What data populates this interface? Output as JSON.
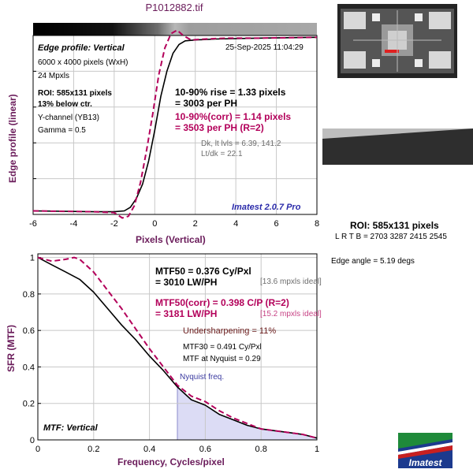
{
  "file_title": "P1012882.tif",
  "edge_panel": {
    "label": "Edge profile: Vertical",
    "date": "25-Sep-2025 11:04:29",
    "lines": [
      {
        "text": "6000 x 4000 pixels (WxH)",
        "style": "info"
      },
      {
        "text": "24 Mpxls",
        "style": "info"
      },
      {
        "text": "ROI: 585x131 pixels",
        "style": "info-b"
      },
      {
        "text": "13% below ctr.",
        "style": "info-b"
      },
      {
        "text": "Y-channel  (YB13)",
        "style": "info"
      },
      {
        "text": "Gamma = 0.5",
        "style": "info"
      }
    ],
    "rise_1": "10-90% rise = 1.33 pixels",
    "rise_2": "= 3003 per PH",
    "corr_1": "10-90%(corr) = 1.14 pixels",
    "corr_2": "= 3503 per PH  (R=2)",
    "dk_1": "Dk, lt lvls = 6.39, 141.2",
    "dk_2": "Lt/dk = 22.1",
    "version": "Imatest 2.0.7 Pro",
    "ylabel": "Edge profile (linear)",
    "xlabel": "Pixels (Vertical)"
  },
  "mtf_panel": {
    "label": "MTF: Vertical",
    "mtf50_1": "MTF50 = 0.376 Cy/Pxl",
    "mtf50_2": "= 3010 LW/PH",
    "mtf50_ideal": "[13.6 mpxls ideal]",
    "corr_1": "MTF50(corr) = 0.398 C/P  (R=2)",
    "corr_2": "= 3181 LW/PH",
    "corr_ideal": "[15.2 mpxls ideal]",
    "undersharp": "Undersharpening = 11%",
    "mtf30": "MTF30 = 0.491 Cy/Pxl",
    "nyq_mtf": "MTF at Nyquist = 0.29",
    "nyq_label": "Nyquist freq.",
    "ylabel": "SFR (MTF)",
    "xlabel": "Frequency, Cycles/pixel"
  },
  "side": {
    "roi": "ROI: 585x131 pixels",
    "lrtb": "L R  T B = 2703 3287  2415 2545",
    "angle": "Edge angle = 5.19 degs",
    "logo_text": "Imatest"
  },
  "colors": {
    "measured": "#000000",
    "corrected": "#b3005a",
    "nyquist_fill": "#dcdcf5",
    "title": "#6a1b5a"
  },
  "chart_data": [
    {
      "type": "line",
      "title": "Edge profile: Vertical",
      "xlabel": "Pixels (Vertical)",
      "ylabel": "Edge profile (linear)",
      "xlim": [
        -6,
        8
      ],
      "ylim": [
        0,
        1
      ],
      "xticks": [
        -6,
        -4,
        -2,
        0,
        2,
        4,
        6,
        8
      ],
      "yticks": [
        0,
        0.2,
        0.4,
        0.6,
        0.8,
        1
      ],
      "show_ytick_labels": false,
      "grid": true,
      "series": [
        {
          "id": "measured",
          "x": [
            -6,
            -3,
            -2,
            -1.5,
            -1.2,
            -0.9,
            -0.6,
            -0.3,
            0,
            0.3,
            0.6,
            0.9,
            1.2,
            1.5,
            2,
            3,
            5,
            8
          ],
          "y": [
            0.02,
            0.015,
            0.015,
            0.02,
            0.04,
            0.09,
            0.17,
            0.3,
            0.47,
            0.66,
            0.8,
            0.9,
            0.95,
            0.97,
            0.975,
            0.98,
            0.985,
            0.99
          ]
        },
        {
          "id": "corrected",
          "x": [
            -6,
            -3,
            -2,
            -1.6,
            -1.3,
            -1.0,
            -0.7,
            -0.4,
            -0.1,
            0.2,
            0.5,
            0.8,
            1.1,
            1.4,
            1.8,
            2.5,
            3.5,
            5,
            8
          ],
          "y": [
            0.02,
            0.015,
            0.01,
            -0.02,
            -0.01,
            0.05,
            0.18,
            0.36,
            0.56,
            0.78,
            0.93,
            1.01,
            1.03,
            1.0,
            0.975,
            0.98,
            0.985,
            0.985,
            0.99
          ]
        }
      ]
    },
    {
      "type": "line",
      "title": "MTF: Vertical",
      "xlabel": "Frequency, Cycles/pixel",
      "ylabel": "SFR (MTF)",
      "xlim": [
        0,
        1
      ],
      "ylim": [
        0,
        1.02
      ],
      "xticks": [
        0,
        0.2,
        0.4,
        0.6,
        0.8,
        1
      ],
      "yticks": [
        0,
        0.2,
        0.4,
        0.6,
        0.8,
        1
      ],
      "grid": true,
      "nyquist": 0.5,
      "series": [
        {
          "id": "measured",
          "x": [
            0,
            0.05,
            0.1,
            0.15,
            0.2,
            0.25,
            0.3,
            0.35,
            0.4,
            0.45,
            0.5,
            0.55,
            0.6,
            0.65,
            0.7,
            0.75,
            0.8,
            0.85,
            0.9,
            0.95,
            1.0
          ],
          "y": [
            1.0,
            0.96,
            0.92,
            0.88,
            0.81,
            0.72,
            0.63,
            0.55,
            0.46,
            0.38,
            0.29,
            0.22,
            0.19,
            0.14,
            0.11,
            0.08,
            0.06,
            0.05,
            0.04,
            0.03,
            0.01
          ]
        },
        {
          "id": "corrected",
          "x": [
            0,
            0.05,
            0.1,
            0.13,
            0.15,
            0.2,
            0.25,
            0.3,
            0.35,
            0.4,
            0.45,
            0.5,
            0.55,
            0.6,
            0.65,
            0.7,
            0.75,
            0.8,
            0.85,
            0.9,
            0.95,
            1.0
          ],
          "y": [
            1.0,
            0.98,
            0.99,
            1.0,
            0.99,
            0.92,
            0.82,
            0.72,
            0.61,
            0.5,
            0.4,
            0.3,
            0.24,
            0.21,
            0.16,
            0.12,
            0.09,
            0.06,
            0.05,
            0.04,
            0.03,
            0.01
          ]
        }
      ]
    }
  ]
}
